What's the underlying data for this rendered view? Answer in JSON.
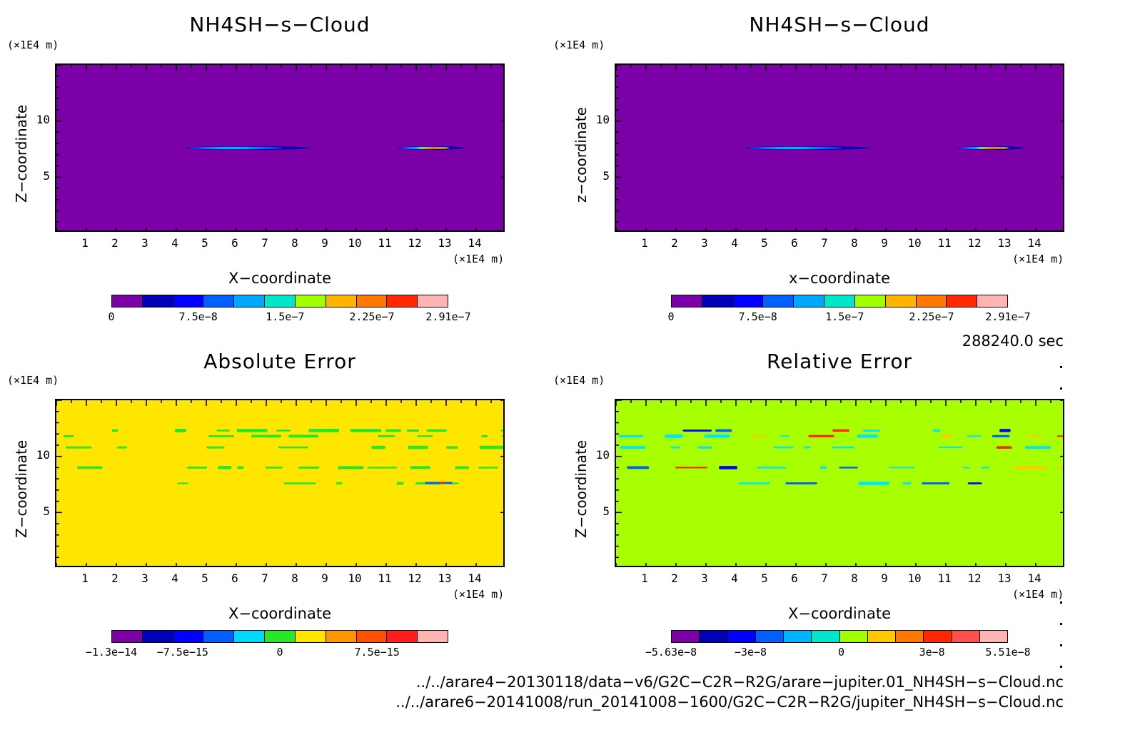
{
  "colors": {
    "levels11": [
      "#7b00a8",
      "#0000b4",
      "#0000ff",
      "#0060ff",
      "#00a8ff",
      "#00e6c8",
      "#a0ff00",
      "#ffb400",
      "#ff7800",
      "#ff2800",
      "#ffb4b4"
    ],
    "abs_levels": [
      "#7b00a8",
      "#0000b4",
      "#0000ff",
      "#0060ff",
      "#00d8ff",
      "#28e628",
      "#ffe600",
      "#ff9600",
      "#ff5000",
      "#ff1e1e",
      "#ffb4b4"
    ],
    "rel_levels": [
      "#7b00a8",
      "#0000b4",
      "#0000ff",
      "#0060ff",
      "#00b4ff",
      "#00e6c8",
      "#a0ff00",
      "#ffc800",
      "#ff7800",
      "#ff2800",
      "#ff5050",
      "#ffb4b4"
    ]
  },
  "panels": [
    {
      "id": "cloud1",
      "title": "NH4SH−s−Cloud",
      "unit_y": "(×1E4 m)",
      "unit_x": "(×1E4 m)",
      "ylabel": "Z−coordinate",
      "xlabel": "X−coordinate",
      "background": "#7b00a8",
      "colorbar_labels": [
        "0",
        "7.5e−8",
        "1.5e−7",
        "2.25e−7",
        "2.91e−7"
      ]
    },
    {
      "id": "cloud2",
      "title": "NH4SH−s−Cloud",
      "unit_y": "(×1E4 m)",
      "unit_x": "(×1E4 m)",
      "ylabel": "z−coordinate",
      "xlabel": "x−coordinate",
      "background": "#7b00a8",
      "colorbar_labels": [
        "0",
        "7.5e−8",
        "1.5e−7",
        "2.25e−7",
        "2.91e−7"
      ]
    },
    {
      "id": "abs",
      "title": "Absolute Error",
      "unit_y": "(×1E4 m)",
      "unit_x": "(×1E4 m)",
      "ylabel": "Z−coordinate",
      "xlabel": "X−coordinate",
      "background": "#ffe600",
      "colorbar_labels": [
        "−1.3e−14",
        "−7.5e−15",
        "0",
        "7.5e−15"
      ]
    },
    {
      "id": "rel",
      "title": "Relative Error",
      "unit_y": "(×1E4 m)",
      "unit_x": "(×1E4 m)",
      "ylabel": "Z−coordinate",
      "xlabel": "X−coordinate",
      "background": "#a8ff00",
      "colorbar_labels": [
        "−5.63e−8",
        "−3e−8",
        "0",
        "3e−8",
        "5.51e−8"
      ]
    }
  ],
  "time_label": "288240.0 sec",
  "files": [
    "../../arare4−20130118/data−v6/G2C−C2R−R2G/arare−jupiter.01_NH4SH−s−Cloud.nc",
    "../../arare6−20141008/run_20141008−1600/G2C−C2R−R2G/jupiter_NH4SH−s−Cloud.nc"
  ],
  "chart_data": [
    {
      "type": "heatmap",
      "title": "NH4SH−s−Cloud",
      "xlabel": "X−coordinate",
      "ylabel": "Z−coordinate",
      "x_unit": "(×1E4 m)",
      "y_unit": "(×1E4 m)",
      "xlim": [
        0,
        15
      ],
      "ylim": [
        0,
        15
      ],
      "x_ticks": [
        1,
        2,
        3,
        4,
        5,
        6,
        7,
        8,
        9,
        10,
        11,
        12,
        13,
        14
      ],
      "y_ticks": [
        5,
        10
      ],
      "colorbar": {
        "min": 0,
        "max": 2.91e-07,
        "labels": [
          "0",
          "7.5e−8",
          "1.5e−7",
          "2.25e−7",
          "2.91e−7"
        ]
      },
      "features": [
        {
          "x_range": [
            4.3,
            8.5
          ],
          "z": 7.6,
          "peak": 1.5e-07
        },
        {
          "x_range": [
            11.4,
            13.6
          ],
          "z": 7.6,
          "peak": 2.91e-07
        }
      ]
    },
    {
      "type": "heatmap",
      "title": "NH4SH−s−Cloud",
      "xlabel": "x−coordinate",
      "ylabel": "z−coordinate",
      "x_unit": "(×1E4 m)",
      "y_unit": "(×1E4 m)",
      "xlim": [
        0,
        15
      ],
      "ylim": [
        0,
        15
      ],
      "x_ticks": [
        1,
        2,
        3,
        4,
        5,
        6,
        7,
        8,
        9,
        10,
        11,
        12,
        13,
        14
      ],
      "y_ticks": [
        5,
        10
      ],
      "colorbar": {
        "min": 0,
        "max": 2.91e-07,
        "labels": [
          "0",
          "7.5e−8",
          "1.5e−7",
          "2.25e−7",
          "2.91e−7"
        ]
      },
      "features": [
        {
          "x_range": [
            4.3,
            8.5
          ],
          "z": 7.6,
          "peak": 1.5e-07
        },
        {
          "x_range": [
            11.4,
            13.6
          ],
          "z": 7.6,
          "peak": 2.91e-07
        }
      ]
    },
    {
      "type": "heatmap",
      "title": "Absolute Error",
      "xlabel": "X−coordinate",
      "ylabel": "Z−coordinate",
      "x_unit": "(×1E4 m)",
      "y_unit": "(×1E4 m)",
      "xlim": [
        0,
        15
      ],
      "ylim": [
        0,
        15
      ],
      "x_ticks": [
        1,
        2,
        3,
        4,
        5,
        6,
        7,
        8,
        9,
        10,
        11,
        12,
        13,
        14
      ],
      "y_ticks": [
        5,
        10
      ],
      "colorbar": {
        "min": -1.3e-14,
        "max": 1.3e-14,
        "labels": [
          "−1.3e−14",
          "−7.5e−15",
          "0",
          "7.5e−15"
        ]
      },
      "background_value": 0
    },
    {
      "type": "heatmap",
      "title": "Relative Error",
      "xlabel": "X−coordinate",
      "ylabel": "Z−coordinate",
      "x_unit": "(×1E4 m)",
      "y_unit": "(×1E4 m)",
      "xlim": [
        0,
        15
      ],
      "ylim": [
        0,
        15
      ],
      "x_ticks": [
        1,
        2,
        3,
        4,
        5,
        6,
        7,
        8,
        9,
        10,
        11,
        12,
        13,
        14
      ],
      "y_ticks": [
        5,
        10
      ],
      "colorbar": {
        "min": -5.63e-08,
        "max": 5.51e-08,
        "labels": [
          "−5.63e−8",
          "−3e−8",
          "0",
          "3e−8",
          "5.51e−8"
        ]
      },
      "background_value": 0
    }
  ]
}
